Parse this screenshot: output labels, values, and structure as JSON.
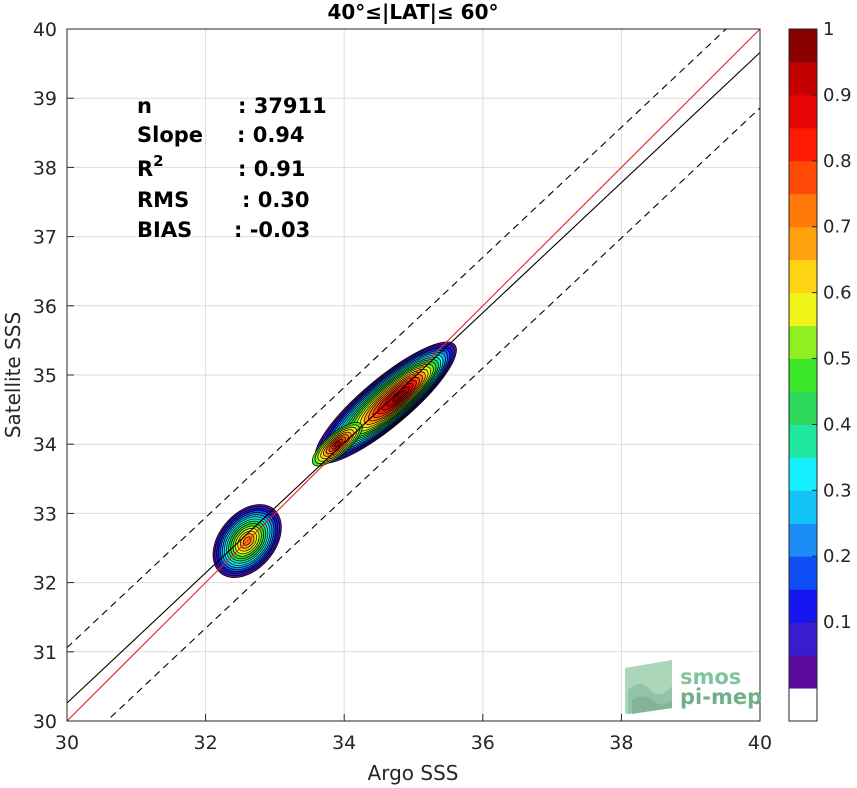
{
  "chart_data": {
    "type": "heatmap",
    "title": "40°≤|LAT|≤ 60°",
    "xlabel": "Argo SSS",
    "ylabel": "Satellite SSS",
    "xlim": [
      30,
      40
    ],
    "ylim": [
      30,
      40
    ],
    "xticks": [
      "30",
      "32",
      "34",
      "36",
      "38",
      "40"
    ],
    "yticks": [
      "30",
      "31",
      "32",
      "33",
      "34",
      "35",
      "36",
      "37",
      "38",
      "39",
      "40"
    ],
    "grid": true,
    "stats": [
      {
        "label": "n",
        "value": ": 37911"
      },
      {
        "label": "Slope",
        "value": ": 0.94"
      },
      {
        "label": "R",
        "sup": "2",
        "value": ": 0.91"
      },
      {
        "label": "RMS",
        "value": ": 0.30"
      },
      {
        "label": "BIAS",
        "value": ": -0.03"
      }
    ],
    "lines": {
      "identity": {
        "slope": 1,
        "intercept": 0,
        "color": "#e8231a",
        "style": "solid"
      },
      "regression": {
        "slope": 0.94,
        "intercept": 2.06,
        "color": "#000000",
        "style": "solid"
      },
      "upper_bound": {
        "slope": 0.94,
        "intercept": 2.86,
        "color": "#000000",
        "style": "dashed"
      },
      "lower_bound": {
        "slope": 0.94,
        "intercept": 1.26,
        "color": "#000000",
        "style": "dashed"
      }
    },
    "density_clusters": [
      {
        "cx": 34.6,
        "cy": 34.6,
        "rx": 1.3,
        "ry": 0.3,
        "angle_deg": 40,
        "peak": 1.0,
        "cores": [
          {
            "x": 34.8,
            "y": 34.7,
            "level": 0.95
          },
          {
            "x": 33.9,
            "y": 34.0,
            "level": 0.9
          }
        ]
      },
      {
        "cx": 32.6,
        "cy": 32.6,
        "rx": 0.6,
        "ry": 0.35,
        "angle_deg": 50,
        "peak": 0.75,
        "cores": [
          {
            "x": 32.6,
            "y": 32.6,
            "level": 0.75
          }
        ]
      }
    ],
    "colorbar": {
      "range": [
        0,
        1
      ],
      "ticks": [
        "0.1",
        "0.2",
        "0.3",
        "0.4",
        "0.5",
        "0.6",
        "0.7",
        "0.8",
        "0.9",
        "1"
      ],
      "colors": [
        "#ffffff",
        "#5a0a9e",
        "#3a1ccf",
        "#1515ef",
        "#0f4ef5",
        "#1c8cf7",
        "#11c4f5",
        "#15f0ff",
        "#20e8a0",
        "#2ed85c",
        "#3ce628",
        "#8ef020",
        "#f2f51a",
        "#ffd417",
        "#ffa00f",
        "#ff7a0a",
        "#ff4a08",
        "#ff1a05",
        "#e50505",
        "#c40000",
        "#8a0000"
      ]
    }
  },
  "logo": {
    "line1": "smos",
    "line2": "pi-mep"
  }
}
